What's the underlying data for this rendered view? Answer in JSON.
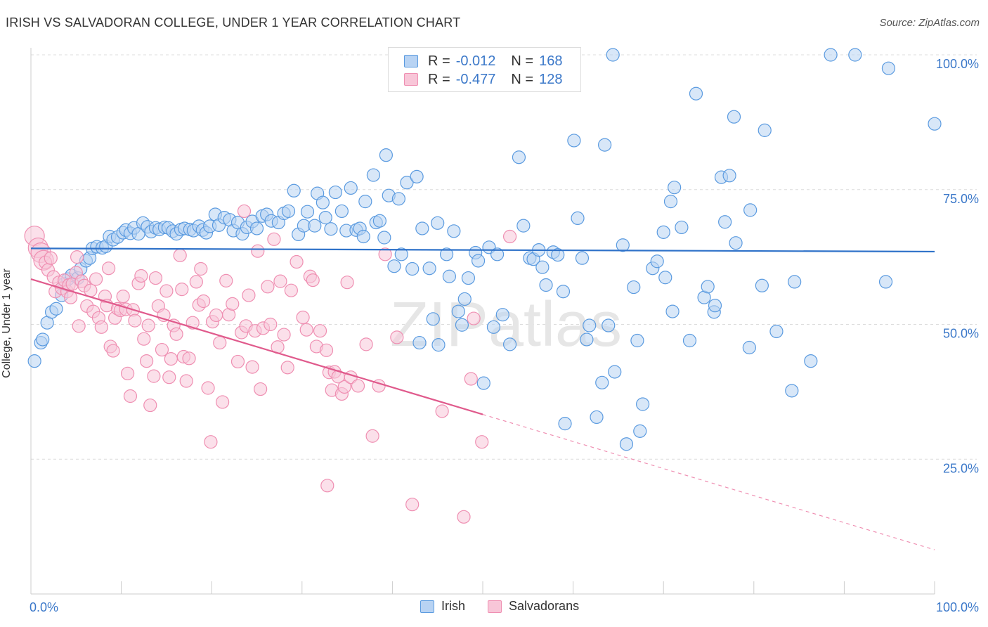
{
  "title": "IRISH VS SALVADORAN COLLEGE, UNDER 1 YEAR CORRELATION CHART",
  "source": "Source: ZipAtlas.com",
  "watermark": "ZIPatlas",
  "legend_top": [
    {
      "r_label": "R = ",
      "r_value": "-0.012",
      "n_label": "N = ",
      "n_value": "168",
      "color": "#5b9be0",
      "fill": "#b8d3f3"
    },
    {
      "r_label": "R = ",
      "r_value": "-0.477",
      "n_label": "N = ",
      "n_value": "128",
      "color": "#ef8fb2",
      "fill": "#f8c6d8"
    }
  ],
  "legend_bottom": [
    {
      "label": "Irish",
      "color": "#5b9be0",
      "fill": "#b8d3f3"
    },
    {
      "label": "Salvadorans",
      "color": "#ef8fb2",
      "fill": "#f8c6d8"
    }
  ],
  "chart_data": {
    "type": "scatter",
    "title": "IRISH VS SALVADORAN COLLEGE, UNDER 1 YEAR CORRELATION CHART",
    "xlabel": "",
    "ylabel": "College, Under 1 year",
    "xlim": [
      0,
      100
    ],
    "ylim": [
      0,
      100
    ],
    "x_tick_labels": [
      {
        "value": 0,
        "label": "0.0%"
      },
      {
        "value": 100,
        "label": "100.0%"
      }
    ],
    "y_tick_labels": [
      {
        "value": 25,
        "label": "25.0%"
      },
      {
        "value": 50,
        "label": "50.0%"
      },
      {
        "value": 75,
        "label": "75.0%"
      },
      {
        "value": 100,
        "label": "100.0%"
      }
    ],
    "grid": true,
    "series": [
      {
        "name": "Irish",
        "color": "#5b9be0",
        "fill": "#b8d3f3",
        "trend": {
          "x": [
            0,
            100
          ],
          "y": [
            64.1,
            63.5
          ],
          "dashed_from": null
        },
        "points": [
          [
            0.4,
            43.2
          ],
          [
            1.1,
            46.6
          ],
          [
            1.3,
            47.2
          ],
          [
            1.8,
            50.3
          ],
          [
            2.3,
            52.3
          ],
          [
            2.8,
            52.9
          ],
          [
            3.4,
            55.4
          ],
          [
            3.7,
            57.5
          ],
          [
            4.1,
            58.4
          ],
          [
            4.5,
            59.1
          ],
          [
            5.2,
            58.6
          ],
          [
            5.5,
            60.3
          ],
          [
            6.1,
            61.8
          ],
          [
            6.5,
            62.3
          ],
          [
            6.8,
            64.1
          ],
          [
            7.3,
            64.4
          ],
          [
            7.9,
            64.2
          ],
          [
            8.3,
            64.5
          ],
          [
            8.7,
            66.3
          ],
          [
            9.1,
            65.7
          ],
          [
            9.6,
            66.2
          ],
          [
            10.2,
            67.0
          ],
          [
            10.5,
            67.5
          ],
          [
            11.0,
            66.9
          ],
          [
            11.4,
            67.9
          ],
          [
            11.9,
            66.8
          ],
          [
            12.4,
            68.8
          ],
          [
            12.9,
            68.1
          ],
          [
            13.3,
            67.2
          ],
          [
            13.8,
            67.9
          ],
          [
            14.2,
            67.6
          ],
          [
            14.8,
            68.0
          ],
          [
            15.2,
            67.9
          ],
          [
            15.7,
            67.3
          ],
          [
            16.1,
            66.8
          ],
          [
            16.6,
            67.6
          ],
          [
            17.0,
            67.8
          ],
          [
            17.6,
            67.6
          ],
          [
            18.0,
            67.4
          ],
          [
            18.6,
            68.2
          ],
          [
            19.0,
            67.5
          ],
          [
            19.4,
            67.0
          ],
          [
            19.8,
            68.2
          ],
          [
            20.4,
            70.4
          ],
          [
            20.8,
            68.4
          ],
          [
            21.4,
            69.8
          ],
          [
            22.0,
            69.4
          ],
          [
            22.4,
            67.4
          ],
          [
            22.9,
            68.9
          ],
          [
            23.4,
            66.8
          ],
          [
            23.9,
            68.0
          ],
          [
            24.5,
            69.1
          ],
          [
            25.0,
            67.8
          ],
          [
            25.6,
            70.1
          ],
          [
            26.1,
            70.4
          ],
          [
            26.6,
            69.2
          ],
          [
            27.4,
            68.9
          ],
          [
            28.0,
            70.6
          ],
          [
            28.5,
            71.0
          ],
          [
            29.1,
            74.8
          ],
          [
            29.6,
            66.7
          ],
          [
            30.2,
            68.3
          ],
          [
            30.6,
            70.9
          ],
          [
            31.4,
            68.3
          ],
          [
            31.7,
            74.3
          ],
          [
            32.3,
            72.6
          ],
          [
            32.6,
            69.8
          ],
          [
            33.2,
            67.7
          ],
          [
            33.7,
            74.5
          ],
          [
            34.4,
            71.0
          ],
          [
            34.9,
            67.4
          ],
          [
            35.4,
            75.3
          ],
          [
            36.0,
            67.5
          ],
          [
            36.4,
            67.8
          ],
          [
            36.8,
            66.3
          ],
          [
            37.0,
            72.8
          ],
          [
            37.9,
            77.7
          ],
          [
            38.2,
            68.9
          ],
          [
            38.6,
            69.2
          ],
          [
            39.1,
            66.1
          ],
          [
            39.3,
            81.4
          ],
          [
            39.6,
            73.9
          ],
          [
            40.2,
            60.8
          ],
          [
            40.7,
            73.3
          ],
          [
            41.0,
            63.0
          ],
          [
            41.6,
            76.3
          ],
          [
            42.2,
            60.3
          ],
          [
            42.7,
            77.4
          ],
          [
            43.3,
            67.8
          ],
          [
            43.0,
            46.6
          ],
          [
            44.1,
            60.4
          ],
          [
            44.5,
            51.0
          ],
          [
            45.0,
            68.8
          ],
          [
            45.1,
            46.2
          ],
          [
            46.0,
            63.0
          ],
          [
            46.3,
            58.9
          ],
          [
            46.8,
            67.3
          ],
          [
            47.3,
            52.4
          ],
          [
            47.7,
            49.9
          ],
          [
            48.0,
            54.7
          ],
          [
            48.4,
            58.6
          ],
          [
            49.2,
            63.3
          ],
          [
            49.5,
            61.8
          ],
          [
            50.1,
            39.1
          ],
          [
            50.7,
            64.3
          ],
          [
            51.2,
            49.5
          ],
          [
            51.6,
            63.0
          ],
          [
            52.2,
            51.8
          ],
          [
            53.0,
            46.3
          ],
          [
            54.0,
            81.0
          ],
          [
            54.5,
            68.3
          ],
          [
            55.2,
            62.3
          ],
          [
            55.6,
            62.1
          ],
          [
            56.2,
            63.8
          ],
          [
            56.6,
            60.6
          ],
          [
            57.0,
            57.3
          ],
          [
            57.8,
            63.4
          ],
          [
            58.3,
            62.9
          ],
          [
            58.9,
            56.1
          ],
          [
            59.1,
            31.6
          ],
          [
            60.1,
            84.1
          ],
          [
            60.5,
            69.7
          ],
          [
            61.0,
            62.3
          ],
          [
            61.5,
            47.2
          ],
          [
            61.8,
            49.8
          ],
          [
            62.6,
            32.8
          ],
          [
            63.2,
            39.2
          ],
          [
            63.5,
            83.3
          ],
          [
            63.9,
            49.8
          ],
          [
            64.6,
            41.2
          ],
          [
            65.5,
            64.7
          ],
          [
            65.9,
            27.8
          ],
          [
            66.7,
            56.9
          ],
          [
            67.1,
            47.0
          ],
          [
            67.4,
            30.2
          ],
          [
            67.7,
            35.2
          ],
          [
            68.8,
            60.4
          ],
          [
            69.3,
            61.7
          ],
          [
            70.0,
            67.1
          ],
          [
            70.2,
            58.7
          ],
          [
            71.0,
            52.4
          ],
          [
            70.8,
            72.8
          ],
          [
            71.2,
            75.4
          ],
          [
            72.0,
            68.0
          ],
          [
            72.9,
            47.0
          ],
          [
            73.6,
            92.8
          ],
          [
            74.5,
            55.0
          ],
          [
            74.9,
            57.0
          ],
          [
            75.6,
            52.3
          ],
          [
            75.7,
            53.5
          ],
          [
            76.4,
            77.3
          ],
          [
            76.8,
            69.0
          ],
          [
            77.3,
            77.6
          ],
          [
            78.0,
            65.1
          ],
          [
            77.8,
            88.5
          ],
          [
            79.5,
            45.7
          ],
          [
            79.6,
            71.2
          ],
          [
            80.9,
            57.2
          ],
          [
            81.2,
            86.0
          ],
          [
            82.5,
            48.7
          ],
          [
            84.2,
            37.7
          ],
          [
            84.5,
            57.9
          ],
          [
            86.3,
            43.2
          ],
          [
            88.5,
            100.0
          ],
          [
            91.2,
            100.0
          ],
          [
            94.9,
            97.5
          ],
          [
            94.6,
            57.9
          ],
          [
            100.0,
            87.2
          ],
          [
            64.4,
            100.0
          ]
        ]
      },
      {
        "name": "Salvadorans",
        "color": "#ef8fb2",
        "fill": "#f8c6d8",
        "trend": {
          "x": [
            0,
            50,
            100
          ],
          "y": [
            58.4,
            33.3,
            8.2
          ],
          "dashed_from": 50
        },
        "points": [
          [
            0.4,
            66.4
          ],
          [
            0.8,
            64.2
          ],
          [
            1.1,
            63.3
          ],
          [
            1.4,
            61.9
          ],
          [
            1.6,
            61.5
          ],
          [
            1.9,
            60.1
          ],
          [
            2.2,
            62.3
          ],
          [
            2.5,
            58.8
          ],
          [
            2.7,
            56.1
          ],
          [
            3.1,
            57.8
          ],
          [
            3.4,
            56.7
          ],
          [
            3.7,
            58.2
          ],
          [
            4.0,
            56.1
          ],
          [
            4.2,
            57.3
          ],
          [
            4.4,
            55.0
          ],
          [
            4.6,
            57.5
          ],
          [
            5.0,
            59.6
          ],
          [
            5.1,
            62.5
          ],
          [
            5.3,
            49.7
          ],
          [
            5.6,
            58.0
          ],
          [
            5.9,
            57.2
          ],
          [
            6.2,
            53.4
          ],
          [
            6.6,
            56.3
          ],
          [
            6.9,
            52.4
          ],
          [
            7.2,
            58.4
          ],
          [
            7.5,
            51.2
          ],
          [
            7.8,
            49.5
          ],
          [
            8.2,
            55.2
          ],
          [
            8.4,
            53.5
          ],
          [
            8.6,
            60.4
          ],
          [
            8.8,
            45.9
          ],
          [
            9.1,
            45.1
          ],
          [
            9.3,
            51.2
          ],
          [
            9.6,
            52.9
          ],
          [
            9.9,
            52.6
          ],
          [
            10.2,
            55.2
          ],
          [
            10.5,
            52.8
          ],
          [
            10.7,
            40.9
          ],
          [
            11.0,
            36.7
          ],
          [
            11.3,
            52.7
          ],
          [
            11.5,
            50.7
          ],
          [
            11.9,
            57.6
          ],
          [
            12.2,
            59.0
          ],
          [
            12.5,
            47.3
          ],
          [
            12.8,
            43.2
          ],
          [
            13.0,
            49.8
          ],
          [
            13.2,
            35.0
          ],
          [
            13.6,
            40.4
          ],
          [
            13.8,
            58.6
          ],
          [
            14.1,
            53.4
          ],
          [
            14.5,
            45.3
          ],
          [
            14.7,
            51.7
          ],
          [
            15.0,
            56.2
          ],
          [
            15.3,
            40.2
          ],
          [
            15.5,
            43.6
          ],
          [
            15.8,
            49.8
          ],
          [
            16.1,
            48.2
          ],
          [
            16.5,
            62.8
          ],
          [
            16.7,
            56.5
          ],
          [
            16.9,
            44.0
          ],
          [
            17.2,
            39.5
          ],
          [
            17.5,
            43.7
          ],
          [
            17.9,
            50.3
          ],
          [
            18.3,
            57.9
          ],
          [
            18.6,
            53.6
          ],
          [
            18.8,
            60.3
          ],
          [
            19.1,
            54.3
          ],
          [
            19.6,
            38.2
          ],
          [
            19.9,
            28.2
          ],
          [
            20.1,
            50.5
          ],
          [
            20.5,
            51.7
          ],
          [
            20.9,
            46.6
          ],
          [
            21.2,
            35.6
          ],
          [
            21.6,
            58.1
          ],
          [
            21.9,
            51.8
          ],
          [
            22.3,
            53.8
          ],
          [
            22.9,
            43.1
          ],
          [
            23.3,
            48.5
          ],
          [
            23.6,
            71.0
          ],
          [
            23.8,
            49.7
          ],
          [
            24.1,
            55.4
          ],
          [
            24.5,
            42.1
          ],
          [
            24.8,
            48.8
          ],
          [
            25.1,
            63.6
          ],
          [
            25.4,
            38.0
          ],
          [
            25.7,
            49.3
          ],
          [
            26.2,
            57.0
          ],
          [
            26.5,
            50.0
          ],
          [
            26.9,
            65.8
          ],
          [
            27.3,
            45.8
          ],
          [
            27.6,
            58.0
          ],
          [
            28.0,
            48.1
          ],
          [
            28.4,
            42.0
          ],
          [
            28.8,
            56.3
          ],
          [
            29.4,
            61.6
          ],
          [
            30.1,
            51.3
          ],
          [
            30.5,
            49.0
          ],
          [
            30.9,
            58.9
          ],
          [
            31.2,
            58.2
          ],
          [
            31.6,
            45.9
          ],
          [
            32.0,
            48.8
          ],
          [
            32.7,
            45.2
          ],
          [
            32.8,
            20.1
          ],
          [
            33.0,
            41.1
          ],
          [
            33.3,
            37.8
          ],
          [
            33.6,
            41.2
          ],
          [
            34.0,
            40.3
          ],
          [
            34.4,
            37.1
          ],
          [
            34.7,
            38.4
          ],
          [
            35.0,
            57.8
          ],
          [
            35.4,
            40.2
          ],
          [
            36.2,
            38.6
          ],
          [
            37.1,
            46.3
          ],
          [
            37.8,
            29.3
          ],
          [
            38.5,
            38.6
          ],
          [
            39.2,
            63.0
          ],
          [
            40.5,
            47.6
          ],
          [
            42.2,
            16.6
          ],
          [
            45.5,
            33.9
          ],
          [
            47.9,
            14.3
          ],
          [
            48.7,
            39.9
          ],
          [
            49.0,
            51.1
          ],
          [
            49.9,
            28.2
          ],
          [
            53.0,
            66.3
          ]
        ]
      }
    ]
  }
}
